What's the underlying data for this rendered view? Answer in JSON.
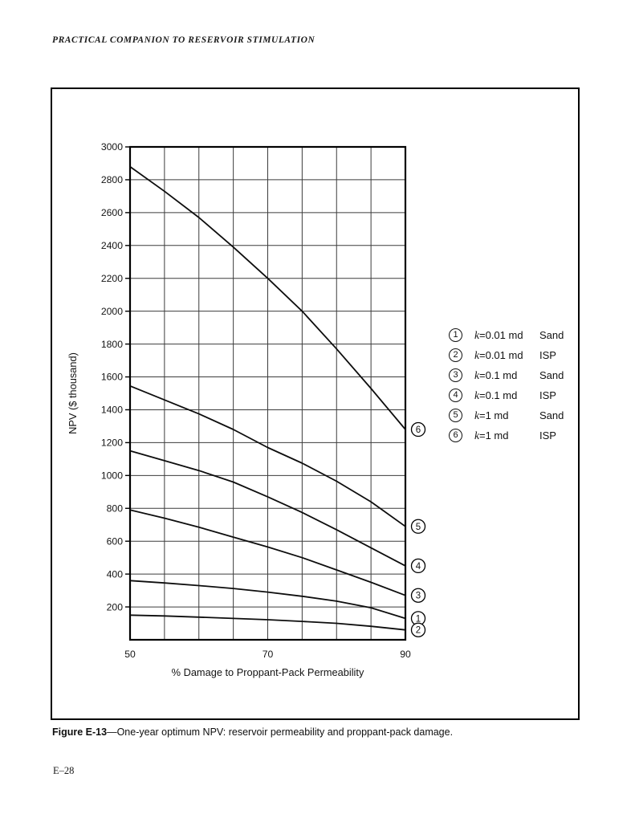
{
  "page": {
    "header": "PRACTICAL COMPANION TO RESERVOIR STIMULATION",
    "caption_label": "Figure E-13",
    "caption_text": "—One-year optimum NPV: reservoir permeability and proppant-pack damage.",
    "page_number": "E–28"
  },
  "legend": {
    "items": [
      {
        "num": "1",
        "k_var": "k",
        "k_rest": "=0.01 md",
        "type": "Sand"
      },
      {
        "num": "2",
        "k_var": "k",
        "k_rest": "=0.01 md",
        "type": "ISP"
      },
      {
        "num": "3",
        "k_var": "k",
        "k_rest": "=0.1 md",
        "type": "Sand"
      },
      {
        "num": "4",
        "k_var": "k",
        "k_rest": "=0.1 md",
        "type": "ISP"
      },
      {
        "num": "5",
        "k_var": "k",
        "k_rest": "=1 md",
        "type": "Sand"
      },
      {
        "num": "6",
        "k_var": "k",
        "k_rest": "=1 md",
        "type": "ISP"
      }
    ]
  },
  "chart_data": {
    "type": "line",
    "title": "",
    "xlabel": "% Damage to Proppant-Pack Permeability",
    "ylabel": "NPV ($ thousand)",
    "xlim": [
      50,
      90
    ],
    "ylim": [
      0,
      3000
    ],
    "x_ticks": [
      50,
      70,
      90
    ],
    "x_grid": [
      50,
      55,
      60,
      65,
      70,
      75,
      80,
      85,
      90
    ],
    "y_ticks": [
      200,
      400,
      600,
      800,
      1000,
      1200,
      1400,
      1600,
      1800,
      2000,
      2200,
      2400,
      2600,
      2800,
      3000
    ],
    "grid": true,
    "legend_position": "right",
    "x": [
      50,
      55,
      60,
      65,
      70,
      75,
      80,
      85,
      90
    ],
    "series": [
      {
        "marker": "1",
        "name": "k=0.01 md Sand",
        "values": [
          360,
          346,
          330,
          312,
          290,
          265,
          235,
          195,
          130
        ]
      },
      {
        "marker": "2",
        "name": "k=0.01 md ISP",
        "values": [
          150,
          145,
          138,
          130,
          122,
          112,
          100,
          82,
          60
        ]
      },
      {
        "marker": "3",
        "name": "k=0.1 md Sand",
        "values": [
          790,
          740,
          685,
          625,
          565,
          500,
          425,
          350,
          270
        ]
      },
      {
        "marker": "4",
        "name": "k=0.1 md ISP",
        "values": [
          1150,
          1090,
          1030,
          960,
          870,
          775,
          670,
          560,
          450
        ]
      },
      {
        "marker": "5",
        "name": "k=1 md Sand",
        "values": [
          1545,
          1460,
          1375,
          1280,
          1170,
          1075,
          965,
          840,
          690
        ]
      },
      {
        "marker": "6",
        "name": "k=1 md ISP",
        "values": [
          2880,
          2730,
          2570,
          2390,
          2200,
          2000,
          1770,
          1530,
          1280
        ]
      }
    ],
    "line_color": "#0d0d0d",
    "grid_color": "#3c3c3c"
  }
}
